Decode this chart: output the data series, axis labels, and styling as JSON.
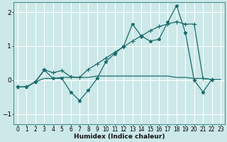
{
  "xlabel": "Humidex (Indice chaleur)",
  "xlim": [
    -0.5,
    23.5
  ],
  "ylim": [
    -1.3,
    2.3
  ],
  "yticks": [
    -1,
    0,
    1,
    2
  ],
  "xticks": [
    0,
    1,
    2,
    3,
    4,
    5,
    6,
    7,
    8,
    9,
    10,
    11,
    12,
    13,
    14,
    15,
    16,
    17,
    18,
    19,
    20,
    21,
    22,
    23
  ],
  "bg_color": "#cce8e8",
  "line_color": "#1a6b6b",
  "grid_color": "#b0d8d8",
  "series": [
    {
      "x": [
        0,
        1,
        2,
        3,
        4,
        5,
        6,
        7,
        8,
        9,
        10,
        11,
        12,
        13,
        14,
        15,
        16,
        17,
        18,
        19,
        20,
        21,
        22
      ],
      "y": [
        -0.2,
        -0.2,
        -0.05,
        0.3,
        0.05,
        0.05,
        -0.35,
        -0.6,
        -0.3,
        0.05,
        0.55,
        0.78,
        1.0,
        1.65,
        1.3,
        1.15,
        1.2,
        1.7,
        2.2,
        1.4,
        0.0,
        -0.35,
        0.02
      ],
      "marker": "*",
      "markersize": 3.5,
      "linewidth": 0.9
    },
    {
      "x": [
        0,
        1,
        2,
        3,
        4,
        5,
        6,
        7,
        8,
        9,
        10,
        11,
        12,
        13,
        14,
        15,
        16,
        17,
        18,
        19,
        20,
        21,
        22
      ],
      "y": [
        -0.2,
        -0.2,
        -0.05,
        0.3,
        0.22,
        0.28,
        0.1,
        0.08,
        0.32,
        0.48,
        0.65,
        0.82,
        0.98,
        1.15,
        1.3,
        1.45,
        1.58,
        1.65,
        1.72,
        1.65,
        1.65,
        0.05,
        0.02
      ],
      "marker": "+",
      "markersize": 4,
      "linewidth": 0.9
    },
    {
      "x": [
        0,
        1,
        2,
        3,
        4,
        5,
        6,
        7,
        8,
        9,
        10,
        11,
        12,
        13,
        14,
        15,
        16,
        17,
        18,
        19,
        20,
        21,
        22,
        23
      ],
      "y": [
        -0.2,
        -0.2,
        -0.05,
        0.05,
        0.05,
        0.08,
        0.08,
        0.08,
        0.08,
        0.12,
        0.12,
        0.12,
        0.12,
        0.12,
        0.12,
        0.12,
        0.12,
        0.12,
        0.08,
        0.08,
        0.05,
        0.05,
        0.02,
        0.02
      ],
      "marker": null,
      "markersize": 0,
      "linewidth": 0.9
    }
  ]
}
